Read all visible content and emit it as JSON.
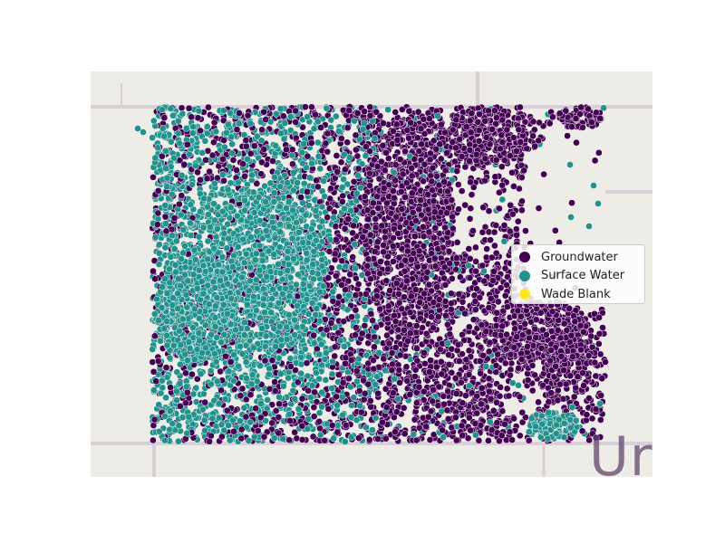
{
  "chart_data": {
    "type": "scatter",
    "title": "",
    "xlabel": "",
    "ylabel": "",
    "grid": false,
    "legend_position": "right",
    "basemap_text": "Ur",
    "series": [
      {
        "name": "Groundwater",
        "color": "#440154",
        "primary_region": "east"
      },
      {
        "name": "Surface Water",
        "color": "#21918c",
        "primary_region": "west"
      },
      {
        "name": "Wade Blank",
        "color": "#fde725",
        "count": 0
      }
    ]
  },
  "legend": {
    "items": [
      {
        "label": "Groundwater",
        "color": "#440154"
      },
      {
        "label": "Surface Water",
        "color": "#21918c"
      },
      {
        "label": "Wade Blank",
        "color": "#fde725"
      }
    ]
  },
  "colors": {
    "basemap": "#eeece6",
    "roads": "#d9cfd9"
  }
}
